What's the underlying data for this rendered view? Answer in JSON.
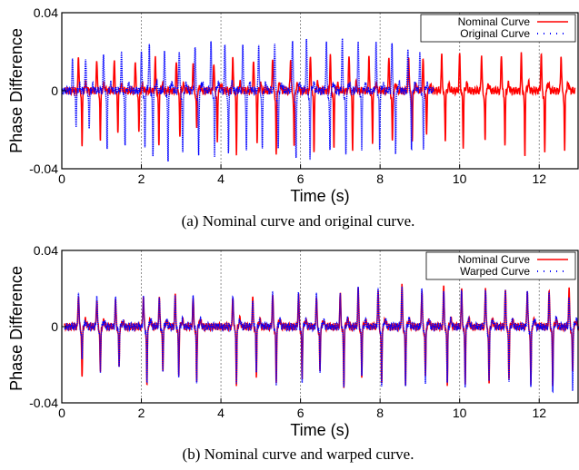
{
  "chart_data": [
    {
      "type": "line",
      "caption": "(a) Nominal curve and original curve.",
      "xlabel": "Time (s)",
      "ylabel": "Phase Difference",
      "xlim": [
        0,
        13
      ],
      "ylim": [
        -0.04,
        0.04
      ],
      "x_ticks": [
        "0",
        "2",
        "4",
        "6",
        "8",
        "10",
        "12"
      ],
      "y_ticks": [
        "0.04",
        "0",
        "-0.04"
      ],
      "vertical_guides": [
        2,
        4,
        6,
        8,
        10,
        12
      ],
      "legend": "top-right",
      "series": [
        {
          "name": "Nominal Curve",
          "color": "#ff0000",
          "style": "solid",
          "beats": [
            {
              "t": 0.42,
              "p": 0.017,
              "n": -0.027
            },
            {
              "t": 0.88,
              "p": 0.016,
              "n": -0.025
            },
            {
              "t": 1.32,
              "p": 0.015,
              "n": -0.021
            },
            {
              "t": 1.85,
              "p": 0.015,
              "n": -0.02
            },
            {
              "t": 2.35,
              "p": 0.016,
              "n": -0.027
            },
            {
              "t": 2.88,
              "p": 0.015,
              "n": -0.023
            },
            {
              "t": 3.3,
              "p": 0.014,
              "n": -0.019
            },
            {
              "t": 3.82,
              "p": 0.014,
              "n": -0.027
            },
            {
              "t": 4.3,
              "p": 0.016,
              "n": -0.031
            },
            {
              "t": 4.82,
              "p": 0.015,
              "n": -0.026
            },
            {
              "t": 5.3,
              "p": 0.017,
              "n": -0.033
            },
            {
              "t": 5.75,
              "p": 0.016,
              "n": -0.029
            },
            {
              "t": 6.25,
              "p": 0.018,
              "n": -0.031
            },
            {
              "t": 6.75,
              "p": 0.017,
              "n": -0.028
            },
            {
              "t": 7.22,
              "p": 0.018,
              "n": -0.03
            },
            {
              "t": 7.72,
              "p": 0.016,
              "n": -0.026
            },
            {
              "t": 8.22,
              "p": 0.018,
              "n": -0.027
            },
            {
              "t": 8.72,
              "p": 0.017,
              "n": -0.025
            },
            {
              "t": 9.08,
              "p": 0.016,
              "n": -0.022
            },
            {
              "t": 9.55,
              "p": 0.018,
              "n": -0.025
            },
            {
              "t": 10.0,
              "p": 0.019,
              "n": -0.029
            },
            {
              "t": 10.55,
              "p": 0.018,
              "n": -0.026
            },
            {
              "t": 11.05,
              "p": 0.019,
              "n": -0.028
            },
            {
              "t": 11.55,
              "p": 0.018,
              "n": -0.032
            },
            {
              "t": 12.05,
              "p": 0.019,
              "n": -0.033
            },
            {
              "t": 12.55,
              "p": 0.018,
              "n": -0.031
            }
          ]
        },
        {
          "name": "Original Curve",
          "color": "#0000ff",
          "style": "dotted",
          "beats": [
            {
              "t": 0.27,
              "p": 0.016,
              "n": -0.017
            },
            {
              "t": 0.6,
              "p": 0.017,
              "n": -0.019
            },
            {
              "t": 1.05,
              "p": 0.018,
              "n": -0.028
            },
            {
              "t": 1.5,
              "p": 0.019,
              "n": -0.027
            },
            {
              "t": 2.0,
              "p": 0.02,
              "n": -0.029
            },
            {
              "t": 2.2,
              "p": 0.02,
              "n": -0.033
            },
            {
              "t": 2.58,
              "p": 0.019,
              "n": -0.036
            },
            {
              "t": 2.95,
              "p": 0.021,
              "n": -0.033
            },
            {
              "t": 3.35,
              "p": 0.023,
              "n": -0.034
            },
            {
              "t": 3.75,
              "p": 0.025,
              "n": -0.033
            },
            {
              "t": 4.1,
              "p": 0.024,
              "n": -0.031
            },
            {
              "t": 4.55,
              "p": 0.023,
              "n": -0.029
            },
            {
              "t": 4.95,
              "p": 0.024,
              "n": -0.03
            },
            {
              "t": 5.35,
              "p": 0.025,
              "n": -0.031
            },
            {
              "t": 5.8,
              "p": 0.027,
              "n": -0.035
            },
            {
              "t": 6.15,
              "p": 0.026,
              "n": -0.034
            },
            {
              "t": 6.65,
              "p": 0.025,
              "n": -0.031
            },
            {
              "t": 7.05,
              "p": 0.026,
              "n": -0.033
            },
            {
              "t": 7.45,
              "p": 0.025,
              "n": -0.03
            },
            {
              "t": 7.9,
              "p": 0.024,
              "n": -0.029
            },
            {
              "t": 8.3,
              "p": 0.023,
              "n": -0.031
            },
            {
              "t": 8.7,
              "p": 0.021,
              "n": -0.03
            },
            {
              "t": 9.0,
              "p": 0.018,
              "n": -0.029
            }
          ]
        }
      ]
    },
    {
      "type": "line",
      "caption": "(b) Nominal curve and warped curve.",
      "xlabel": "Time (s)",
      "ylabel": "Phase Difference",
      "xlim": [
        0,
        13
      ],
      "ylim": [
        -0.04,
        0.04
      ],
      "x_ticks": [
        "0",
        "2",
        "4",
        "6",
        "8",
        "10",
        "12"
      ],
      "y_ticks": [
        "0.04",
        "0",
        "-0.04"
      ],
      "vertical_guides": [
        2,
        4,
        6,
        8,
        10,
        12
      ],
      "legend": "top-right",
      "series": [
        {
          "name": "Nominal Curve",
          "color": "#ff0000",
          "style": "solid",
          "beats": [
            {
              "t": 0.42,
              "p": 0.017,
              "n": -0.027
            },
            {
              "t": 0.88,
              "p": 0.015,
              "n": -0.025
            },
            {
              "t": 1.35,
              "p": 0.014,
              "n": -0.021
            },
            {
              "t": 2.05,
              "p": 0.016,
              "n": -0.031
            },
            {
              "t": 2.45,
              "p": 0.015,
              "n": -0.024
            },
            {
              "t": 2.85,
              "p": 0.016,
              "n": -0.026
            },
            {
              "t": 3.3,
              "p": 0.015,
              "n": -0.029
            },
            {
              "t": 4.3,
              "p": 0.016,
              "n": -0.031
            },
            {
              "t": 4.8,
              "p": 0.014,
              "n": -0.025
            },
            {
              "t": 5.3,
              "p": 0.017,
              "n": -0.031
            },
            {
              "t": 5.95,
              "p": 0.017,
              "n": -0.029
            },
            {
              "t": 6.4,
              "p": 0.016,
              "n": -0.024
            },
            {
              "t": 7.0,
              "p": 0.017,
              "n": -0.032
            },
            {
              "t": 7.45,
              "p": 0.02,
              "n": -0.026
            },
            {
              "t": 7.95,
              "p": 0.019,
              "n": -0.031
            },
            {
              "t": 8.55,
              "p": 0.021,
              "n": -0.03
            },
            {
              "t": 9.05,
              "p": 0.019,
              "n": -0.028
            },
            {
              "t": 9.6,
              "p": 0.02,
              "n": -0.029
            },
            {
              "t": 10.05,
              "p": 0.019,
              "n": -0.03
            },
            {
              "t": 10.65,
              "p": 0.02,
              "n": -0.029
            },
            {
              "t": 11.15,
              "p": 0.019,
              "n": -0.027
            },
            {
              "t": 11.7,
              "p": 0.019,
              "n": -0.031
            },
            {
              "t": 12.25,
              "p": 0.018,
              "n": -0.03
            },
            {
              "t": 12.75,
              "p": 0.02,
              "n": -0.024
            }
          ]
        },
        {
          "name": "Warped Curve",
          "color": "#0000ff",
          "style": "dotted",
          "beats": [
            {
              "t": 0.42,
              "p": 0.018,
              "n": -0.017
            },
            {
              "t": 0.88,
              "p": 0.016,
              "n": -0.024
            },
            {
              "t": 1.35,
              "p": 0.015,
              "n": -0.021
            },
            {
              "t": 2.05,
              "p": 0.016,
              "n": -0.03
            },
            {
              "t": 2.45,
              "p": 0.015,
              "n": -0.023
            },
            {
              "t": 2.85,
              "p": 0.016,
              "n": -0.025
            },
            {
              "t": 3.3,
              "p": 0.015,
              "n": -0.028
            },
            {
              "t": 4.3,
              "p": 0.016,
              "n": -0.03
            },
            {
              "t": 4.8,
              "p": 0.014,
              "n": -0.024
            },
            {
              "t": 5.3,
              "p": 0.017,
              "n": -0.029
            },
            {
              "t": 5.95,
              "p": 0.017,
              "n": -0.028
            },
            {
              "t": 6.4,
              "p": 0.016,
              "n": -0.023
            },
            {
              "t": 7.0,
              "p": 0.017,
              "n": -0.03
            },
            {
              "t": 7.45,
              "p": 0.02,
              "n": -0.025
            },
            {
              "t": 7.95,
              "p": 0.02,
              "n": -0.031
            },
            {
              "t": 8.55,
              "p": 0.021,
              "n": -0.031
            },
            {
              "t": 9.05,
              "p": 0.019,
              "n": -0.029
            },
            {
              "t": 9.6,
              "p": 0.02,
              "n": -0.03
            },
            {
              "t": 10.05,
              "p": 0.019,
              "n": -0.031
            },
            {
              "t": 10.65,
              "p": 0.02,
              "n": -0.03
            },
            {
              "t": 11.15,
              "p": 0.019,
              "n": -0.028
            },
            {
              "t": 11.7,
              "p": 0.019,
              "n": -0.032
            },
            {
              "t": 12.25,
              "p": 0.018,
              "n": -0.034
            },
            {
              "t": 12.75,
              "p": 0.015,
              "n": -0.033
            }
          ]
        }
      ]
    }
  ]
}
